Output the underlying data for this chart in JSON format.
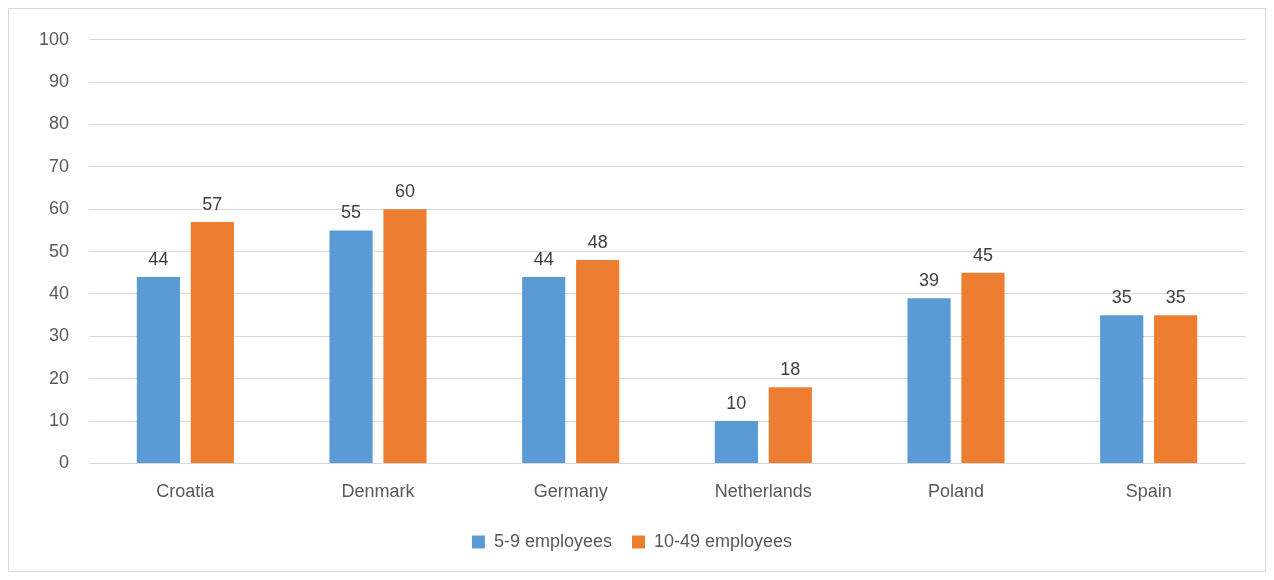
{
  "chart_data": {
    "type": "bar",
    "categories": [
      "Croatia",
      "Denmark",
      "Germany",
      "Netherlands",
      "Poland",
      "Spain"
    ],
    "series": [
      {
        "name": "5-9 employees",
        "color": "#5b9bd5",
        "values": [
          44,
          55,
          44,
          10,
          39,
          35
        ]
      },
      {
        "name": "10-49 employees",
        "color": "#ed7d31",
        "values": [
          57,
          60,
          48,
          18,
          45,
          35
        ]
      }
    ],
    "ylim": [
      0,
      100
    ],
    "yticks": [
      0,
      10,
      20,
      30,
      40,
      50,
      60,
      70,
      80,
      90,
      100
    ],
    "grid": "y",
    "legend": "bottom",
    "data_labels": true
  }
}
